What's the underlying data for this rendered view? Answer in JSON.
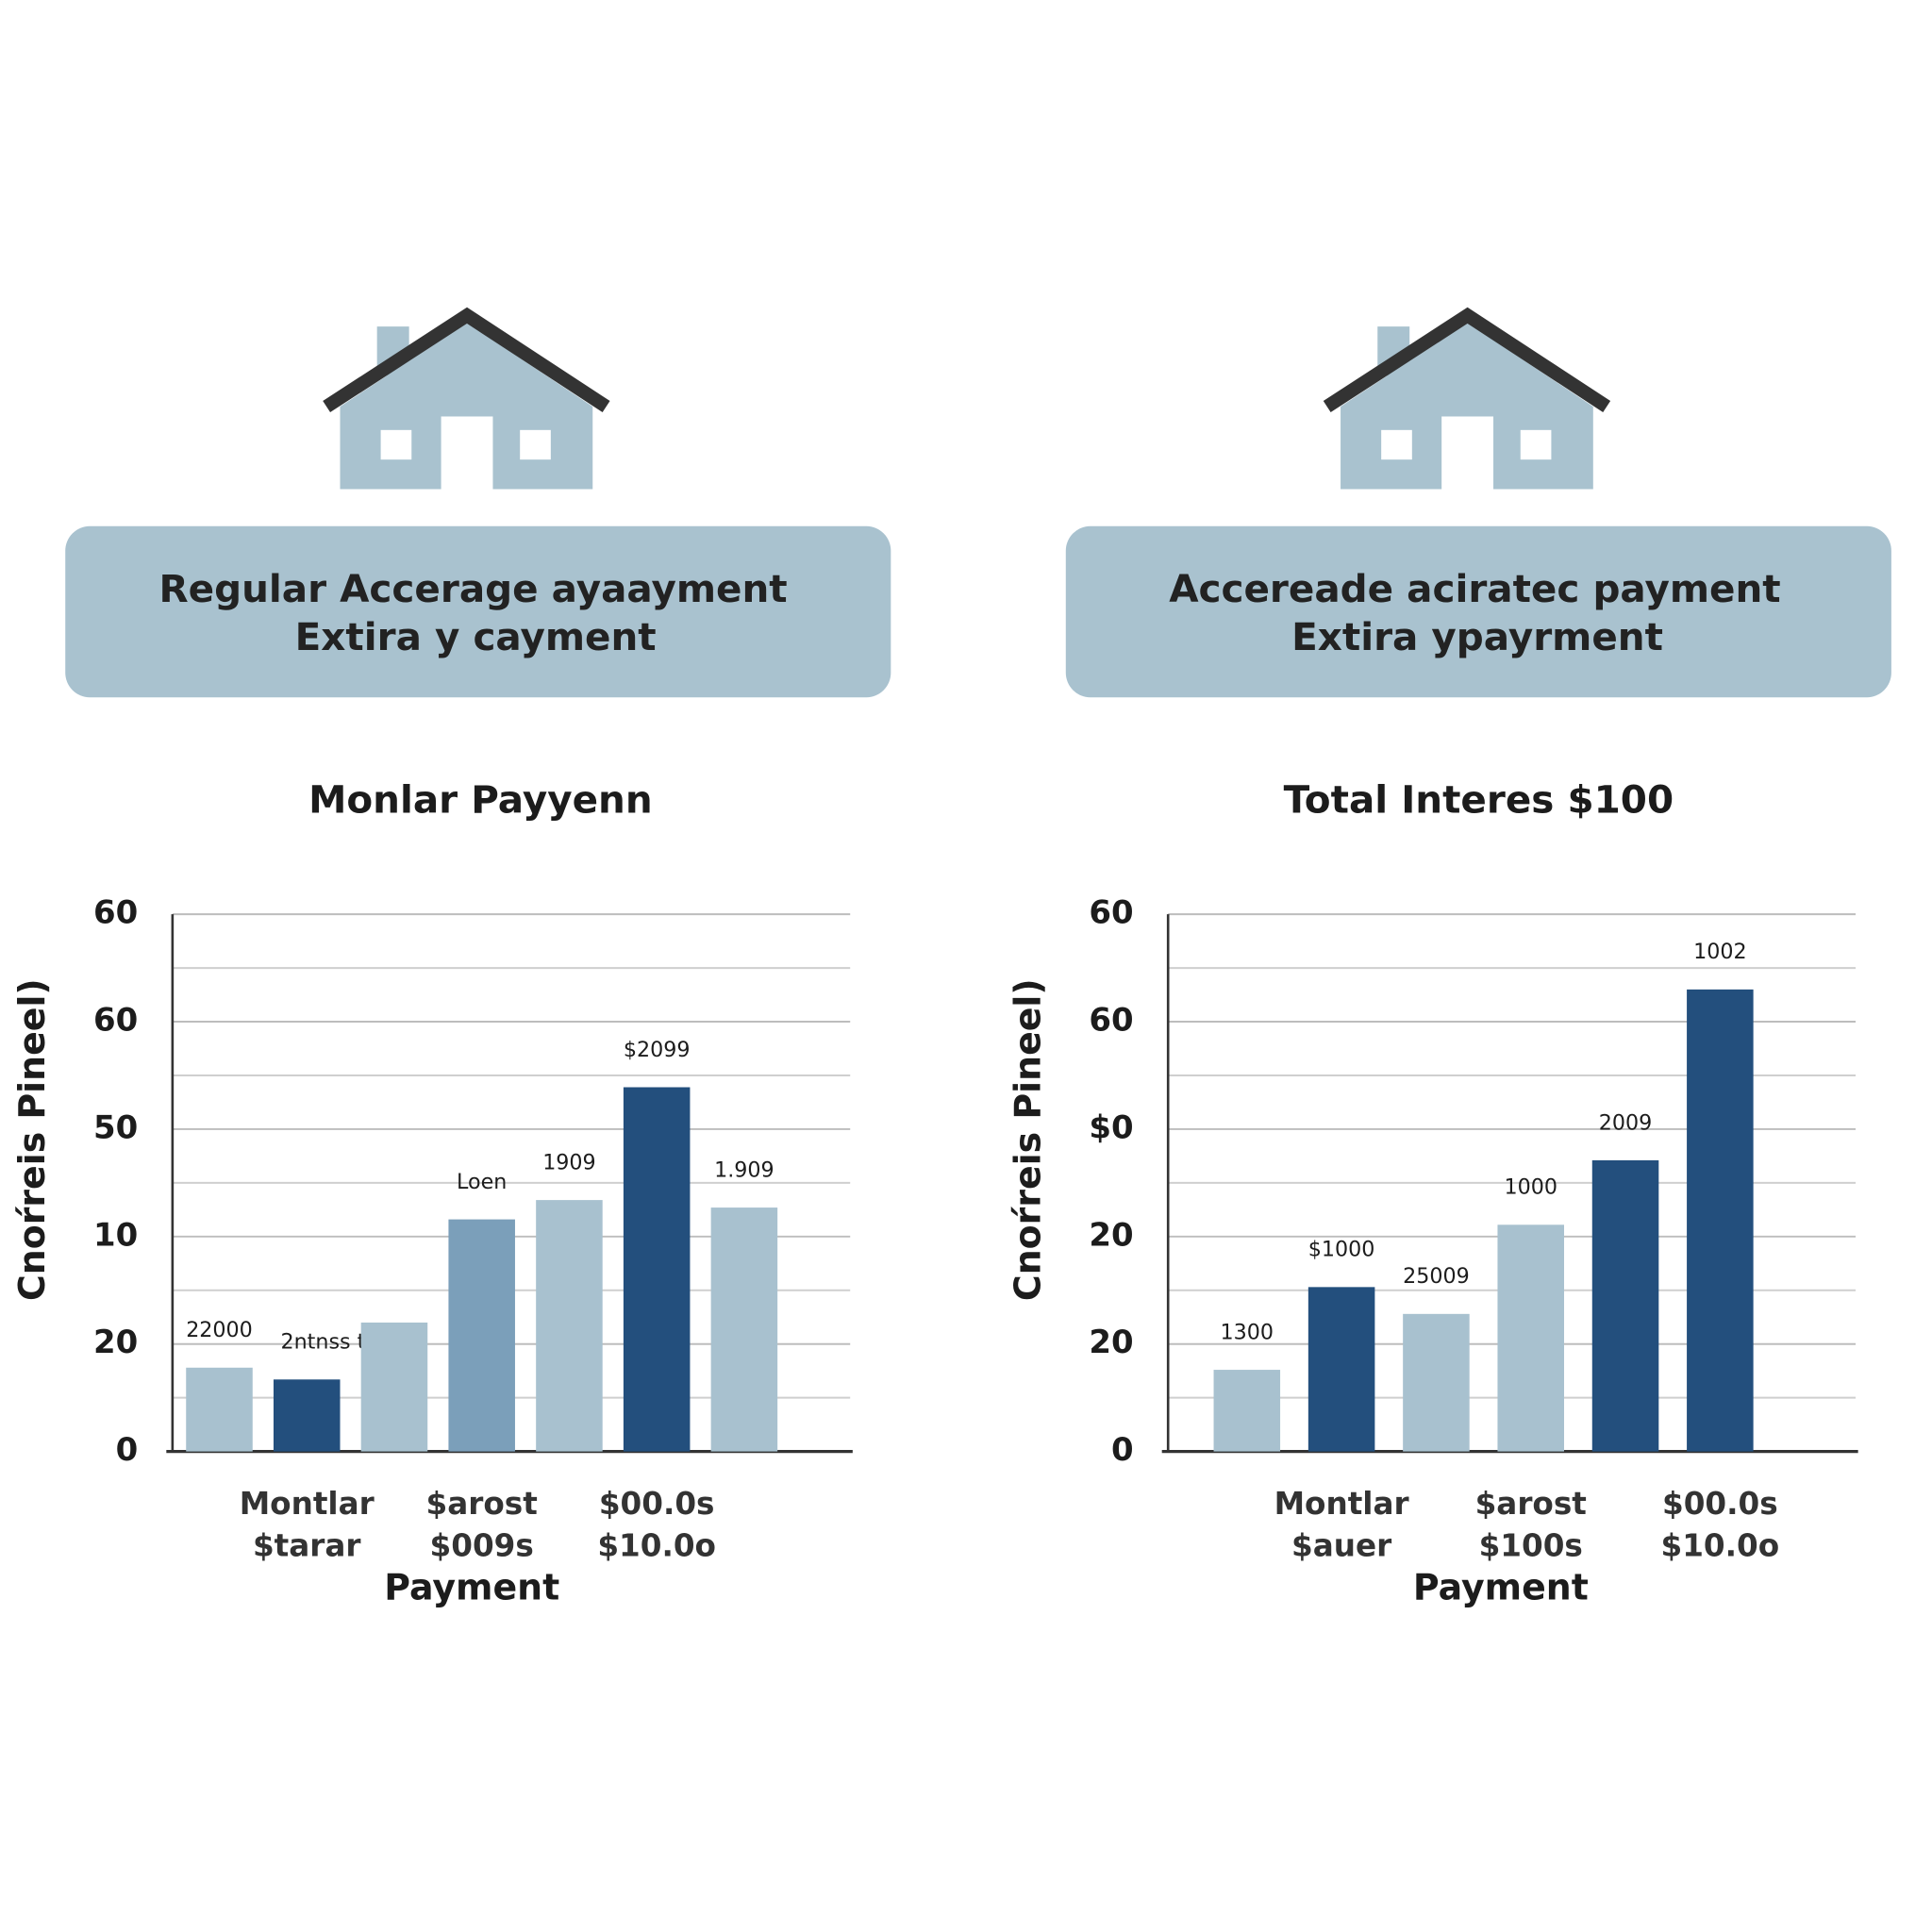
{
  "panels": [
    {
      "lines": [
        "Regular Accerage ayaayment",
        "Extira y cayment"
      ]
    },
    {
      "lines": [
        "Accereade aciratec payment",
        "Extira ypayrment"
      ]
    }
  ],
  "chart_data": [
    {
      "type": "bar",
      "title": "Monlar Payyenn",
      "y_label": "Cnoŕreis Pineel)",
      "x_label": "Payment",
      "categories": [
        null,
        [
          "Montlar",
          "$tarar"
        ],
        null,
        [
          "$arost",
          "$009s"
        ],
        null,
        [
          "$00.0s",
          "$10.0o"
        ],
        null
      ],
      "values": [
        7.8,
        6.7,
        12.0,
        21.6,
        23.4,
        33.9,
        22.7
      ],
      "value_labels": [
        "22000",
        "2ntnss term",
        null,
        "Loen",
        "1909",
        "$2099",
        "1.909"
      ],
      "colors": [
        "#a8c1cf",
        "#234f7d",
        "#a8c1cf",
        "#7b9fba",
        "#a8c1cf",
        "#234f7d",
        "#a8c1cf"
      ],
      "ylim": [
        0,
        50
      ],
      "yticks": [
        0,
        {
          "value": 10,
          "label": "20"
        },
        {
          "value": 20,
          "label": "10"
        },
        {
          "value": 30,
          "label": "50"
        },
        {
          "value": 40,
          "label": "60"
        },
        {
          "value": 50,
          "label": "60"
        }
      ],
      "minor_yticks": [
        5,
        15,
        25,
        35,
        45
      ],
      "grid": true
    },
    {
      "type": "bar",
      "title": "Total Interes $100",
      "y_label": "Cnoŕreis Pineel)",
      "x_label": "Payment",
      "categories": [
        null,
        [
          "Montlar",
          "$auer"
        ],
        null,
        [
          "$arost",
          "$100s"
        ],
        null,
        [
          "$00.0s",
          "$10.0o"
        ]
      ],
      "values": [
        7.6,
        15.3,
        12.8,
        21.1,
        27.1,
        43.0
      ],
      "value_labels": [
        "1300",
        "$1000",
        "25009",
        "1000",
        "2009",
        "1002"
      ],
      "colors": [
        "#a8c1cf",
        "#234f7d",
        "#a8c1cf",
        "#a8c1cf",
        "#234f7d",
        "#234f7d"
      ],
      "ylim": [
        0,
        50
      ],
      "yticks": [
        0,
        {
          "value": 10,
          "label": "20"
        },
        {
          "value": 20,
          "label": "20"
        },
        {
          "value": 30,
          "label": "$0"
        },
        {
          "value": 40,
          "label": "60"
        },
        {
          "value": 50,
          "label": "60"
        }
      ],
      "minor_yticks": [
        5,
        15,
        25,
        35,
        45
      ],
      "grid": true
    }
  ]
}
